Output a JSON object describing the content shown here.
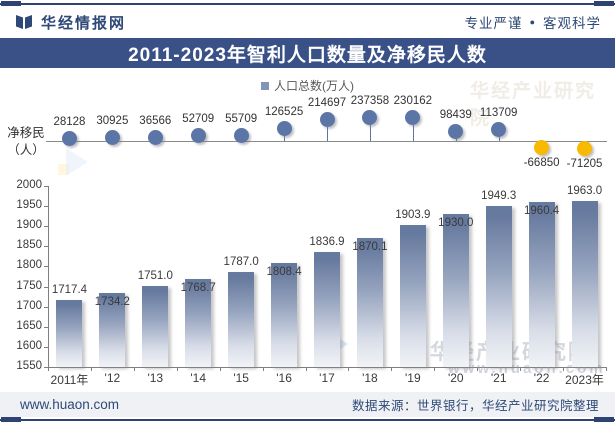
{
  "header": {
    "brand": "华经情报网",
    "slogan_left": "专业严谨",
    "slogan_sep": "●",
    "slogan_right": "客观科学"
  },
  "title_bar": {
    "title": "2011-2023年智利人口数量及净移民人数",
    "bg": "#3A5188",
    "fg": "#FFFFFF"
  },
  "legend": {
    "items": [
      {
        "label": "人口总数(万人)",
        "swatch": "#8193B6"
      }
    ]
  },
  "net_axis": {
    "label_line1": "净移民",
    "label_line2": "（人）"
  },
  "chart_data": {
    "type": "bar",
    "title": "2011-2023年智利人口数量及净移民人数",
    "categories": [
      "2011年",
      "'12",
      "'13",
      "'14",
      "'15",
      "'16",
      "'17",
      "'18",
      "'19",
      "'20",
      "'21",
      "'22",
      "2023年"
    ],
    "series": [
      {
        "name": "人口总数(万人)",
        "type": "bar",
        "unit": "万人",
        "values": [
          1717.4,
          1734.2,
          1751.0,
          1768.7,
          1787.0,
          1808.4,
          1836.9,
          1870.1,
          1903.9,
          1930.0,
          1949.3,
          1960.4,
          1963.0
        ]
      },
      {
        "name": "净移民(人)",
        "type": "scatter",
        "unit": "人",
        "values": [
          28128,
          30925,
          36566,
          52709,
          55709,
          126525,
          214697,
          237358,
          230162,
          98439,
          113709,
          -66850,
          -71205
        ]
      }
    ],
    "ylim": [
      1550,
      2000
    ],
    "yticks": [
      2000,
      1950,
      1900,
      1850,
      1800,
      1750,
      1700,
      1650,
      1600,
      1550
    ],
    "grid": false,
    "legend_position": "top",
    "colors": {
      "bar_top": "#66799E",
      "bar_bottom": "#F1F3F6",
      "marker_positive": "#5B75A6",
      "marker_negative": "#F8BA00",
      "title_bg": "#3A5188",
      "frame": "#2E4372"
    }
  },
  "watermark": {
    "org": "华经产业研究院",
    "site": "www.huaon.com"
  },
  "footer": {
    "site": "www.huaon.com",
    "source": "数据来源：世界银行，华经产业研究院整理"
  }
}
